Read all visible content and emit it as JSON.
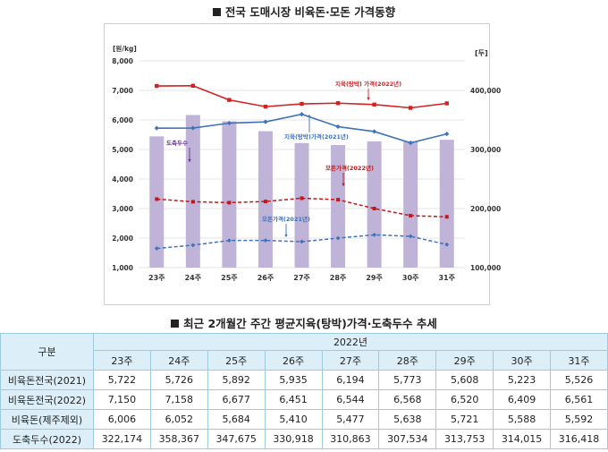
{
  "title1": "전국 도매시장 비육돈·모돈 가격동향",
  "title2": "최근 2개월간 주간 평균지육(탕박)가격·도축두수 추세",
  "chart_data": {
    "type": "bar",
    "categories": [
      "23주",
      "24주",
      "25주",
      "26주",
      "27주",
      "28주",
      "29주",
      "30주",
      "31주"
    ],
    "left_axis_label": "[원/kg]",
    "right_axis_label": "[두]",
    "left_ylim": [
      1000,
      8000
    ],
    "left_ticks": [
      "1,000",
      "2,000",
      "3,000",
      "4,000",
      "5,000",
      "6,000",
      "7,000",
      "8,000"
    ],
    "right_ylim": [
      100000,
      450000
    ],
    "right_ticks": [
      "100,000",
      "200,000",
      "300,000",
      "400,000"
    ],
    "grid": true,
    "series": [
      {
        "name": "도축두수",
        "type": "bar",
        "axis": "right",
        "color": "#bfb3d8",
        "values": [
          322174,
          358367,
          347675,
          330918,
          310863,
          307534,
          313753,
          314015,
          316418
        ]
      },
      {
        "name": "지육(탕박) 가격(2022년)",
        "type": "line",
        "axis": "left",
        "color": "#d42020",
        "values": [
          7150,
          7158,
          6677,
          6451,
          6544,
          6568,
          6520,
          6409,
          6561
        ]
      },
      {
        "name": "지육(탕박)가격(2021년)",
        "type": "line",
        "axis": "left",
        "color": "#3f72b8",
        "values": [
          5722,
          5726,
          5892,
          5935,
          6194,
          5773,
          5608,
          5223,
          5526
        ]
      },
      {
        "name": "모돈가격(2022년)",
        "type": "line",
        "axis": "left",
        "dashed": true,
        "color": "#c01818",
        "values": [
          3320,
          3230,
          3200,
          3240,
          3350,
          3300,
          3000,
          2760,
          2720
        ]
      },
      {
        "name": "모돈가격(2021년)",
        "type": "line",
        "axis": "left",
        "dashed": true,
        "color": "#3f72b8",
        "values": [
          1650,
          1760,
          1920,
          1920,
          1880,
          2000,
          2110,
          2060,
          1780
        ]
      }
    ],
    "annotations": [
      {
        "text": "지육(탕박) 가격(2022년)",
        "color": "#d42020"
      },
      {
        "text": "지육(탕박)가격(2021년)",
        "color": "#3f72b8"
      },
      {
        "text": "도축두수",
        "color": "#6a2a9a"
      },
      {
        "text": "모돈가격(2022년)",
        "color": "#c01818"
      },
      {
        "text": "모돈가격(2021년)",
        "color": "#3f72b8"
      }
    ]
  },
  "table": {
    "corner": "구분",
    "year": "2022년",
    "weeks": [
      "23주",
      "24주",
      "25주",
      "26주",
      "27주",
      "28주",
      "29주",
      "30주",
      "31주"
    ],
    "rows": [
      {
        "label": "비육돈전국(2021)",
        "values": [
          "5,722",
          "5,726",
          "5,892",
          "5,935",
          "6,194",
          "5,773",
          "5,608",
          "5,223",
          "5,526"
        ]
      },
      {
        "label": "비육돈전국(2022)",
        "values": [
          "7,150",
          "7,158",
          "6,677",
          "6,451",
          "6,544",
          "6,568",
          "6,520",
          "6,409",
          "6,561"
        ]
      },
      {
        "label": "비육돈(제주제외)",
        "values": [
          "6,006",
          "6,052",
          "5,684",
          "5,410",
          "5,477",
          "5,638",
          "5,721",
          "5,588",
          "5,592"
        ]
      },
      {
        "label": "도축두수(2022)",
        "values": [
          "322,174",
          "358,367",
          "347,675",
          "330,918",
          "310,863",
          "307,534",
          "313,753",
          "314,015",
          "316,418"
        ]
      }
    ]
  }
}
